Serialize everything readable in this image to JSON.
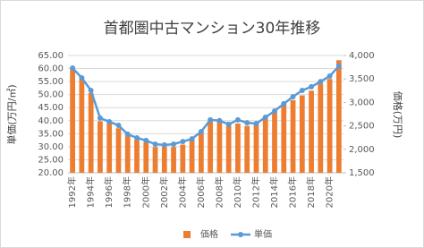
{
  "chart_data": {
    "type": "bar",
    "title": "首都圏中古マンション30年推移",
    "y_label": "単価(万円/㎡)",
    "y2_label": "価格(万円)",
    "categories": [
      "1992年",
      null,
      "1994年",
      null,
      "1996年",
      null,
      "1998年",
      null,
      "2000年",
      null,
      "2002年",
      null,
      "2004年",
      null,
      "2006年",
      null,
      "2008年",
      null,
      "2010年",
      null,
      "2012年",
      null,
      "2014年",
      null,
      "2016年",
      null,
      "2018年",
      null,
      "2020年",
      null
    ],
    "series": [
      {
        "name": "価格",
        "type": "bar",
        "axis": "y2",
        "color": "#ed7d31",
        "values": [
          3700,
          3500,
          3200,
          2600,
          2550,
          2450,
          2300,
          2200,
          2150,
          2050,
          2050,
          2050,
          2100,
          2200,
          2350,
          2600,
          2600,
          2500,
          2550,
          2500,
          2550,
          2650,
          2800,
          2950,
          3050,
          3150,
          3250,
          3400,
          3500,
          3900
        ]
      },
      {
        "name": "単価",
        "type": "line",
        "color": "#5b9bd5",
        "values": [
          60.2,
          56.4,
          51.6,
          41.0,
          39.6,
          38.2,
          34.8,
          33.4,
          32.4,
          31.0,
          30.7,
          31.0,
          32.0,
          33.0,
          35.8,
          40.3,
          40.0,
          38.6,
          40.3,
          39.2,
          38.9,
          41.3,
          43.7,
          46.5,
          49.2,
          51.6,
          53.0,
          55.0,
          57.1,
          60.9
        ]
      }
    ],
    "ylim": [
      20,
      65
    ],
    "yticks": [
      {
        "value": 20,
        "label": "20.00"
      },
      {
        "value": 25,
        "label": "25.00"
      },
      {
        "value": 30,
        "label": "30.00"
      },
      {
        "value": 35,
        "label": "35.00"
      },
      {
        "value": 40,
        "label": "40.00"
      },
      {
        "value": 45,
        "label": "45.00"
      },
      {
        "value": 50,
        "label": "50.00"
      },
      {
        "value": 55,
        "label": "55.00"
      },
      {
        "value": 60,
        "label": "60.00"
      },
      {
        "value": 65,
        "label": "65.00"
      }
    ],
    "y2lim": [
      1500,
      4000
    ],
    "y2ticks": [
      {
        "value": 1500,
        "label": "1,500"
      },
      {
        "value": 2000,
        "label": "2,000"
      },
      {
        "value": 2500,
        "label": "2,500"
      },
      {
        "value": 3000,
        "label": "3,000"
      },
      {
        "value": 3500,
        "label": "3,500"
      },
      {
        "value": 4000,
        "label": "4,000"
      }
    ],
    "legend": "bottom"
  }
}
